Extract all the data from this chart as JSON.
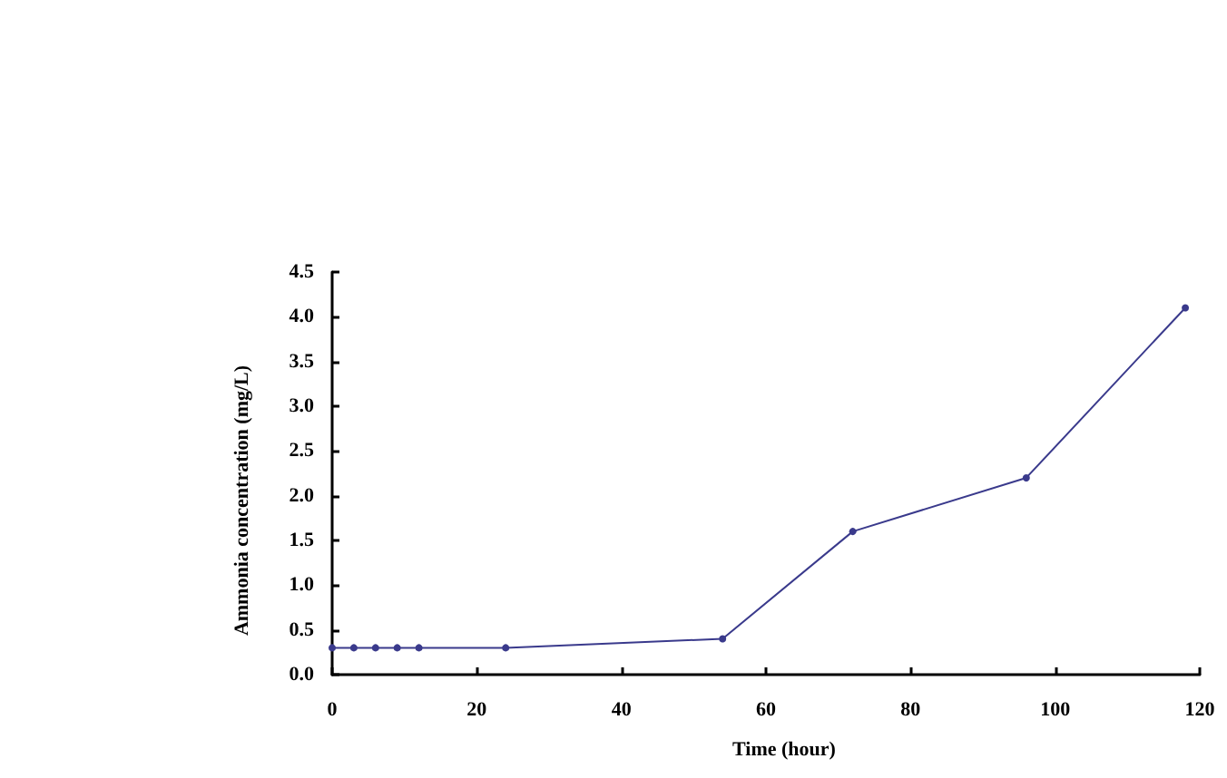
{
  "chart_data": {
    "type": "line",
    "xlabel": "Time (hour)",
    "ylabel": "Ammonia concentration (mg/L)",
    "x": [
      0,
      3,
      6,
      9,
      12,
      24,
      54,
      72,
      96,
      118
    ],
    "series": [
      {
        "color": "#3a3a8c",
        "values": [
          0.3,
          0.3,
          0.3,
          0.3,
          0.3,
          0.3,
          0.4,
          1.6,
          2.2,
          4.1
        ]
      }
    ],
    "xlim": [
      0,
      120
    ],
    "xticks": [
      0,
      20,
      40,
      60,
      80,
      100,
      120
    ],
    "ylim": [
      0,
      4.5
    ],
    "yticks": [
      {
        "value": 0,
        "label": "0.0"
      },
      0.5,
      {
        "value": 1,
        "label": "1.0"
      },
      1.5,
      {
        "value": 2,
        "label": "2.0"
      },
      2.5,
      {
        "value": 3,
        "label": "3.0"
      },
      3.5,
      {
        "value": 4,
        "label": "4.0"
      },
      4.5
    ],
    "grid": false,
    "marker": "circle",
    "line_style": "solid"
  }
}
